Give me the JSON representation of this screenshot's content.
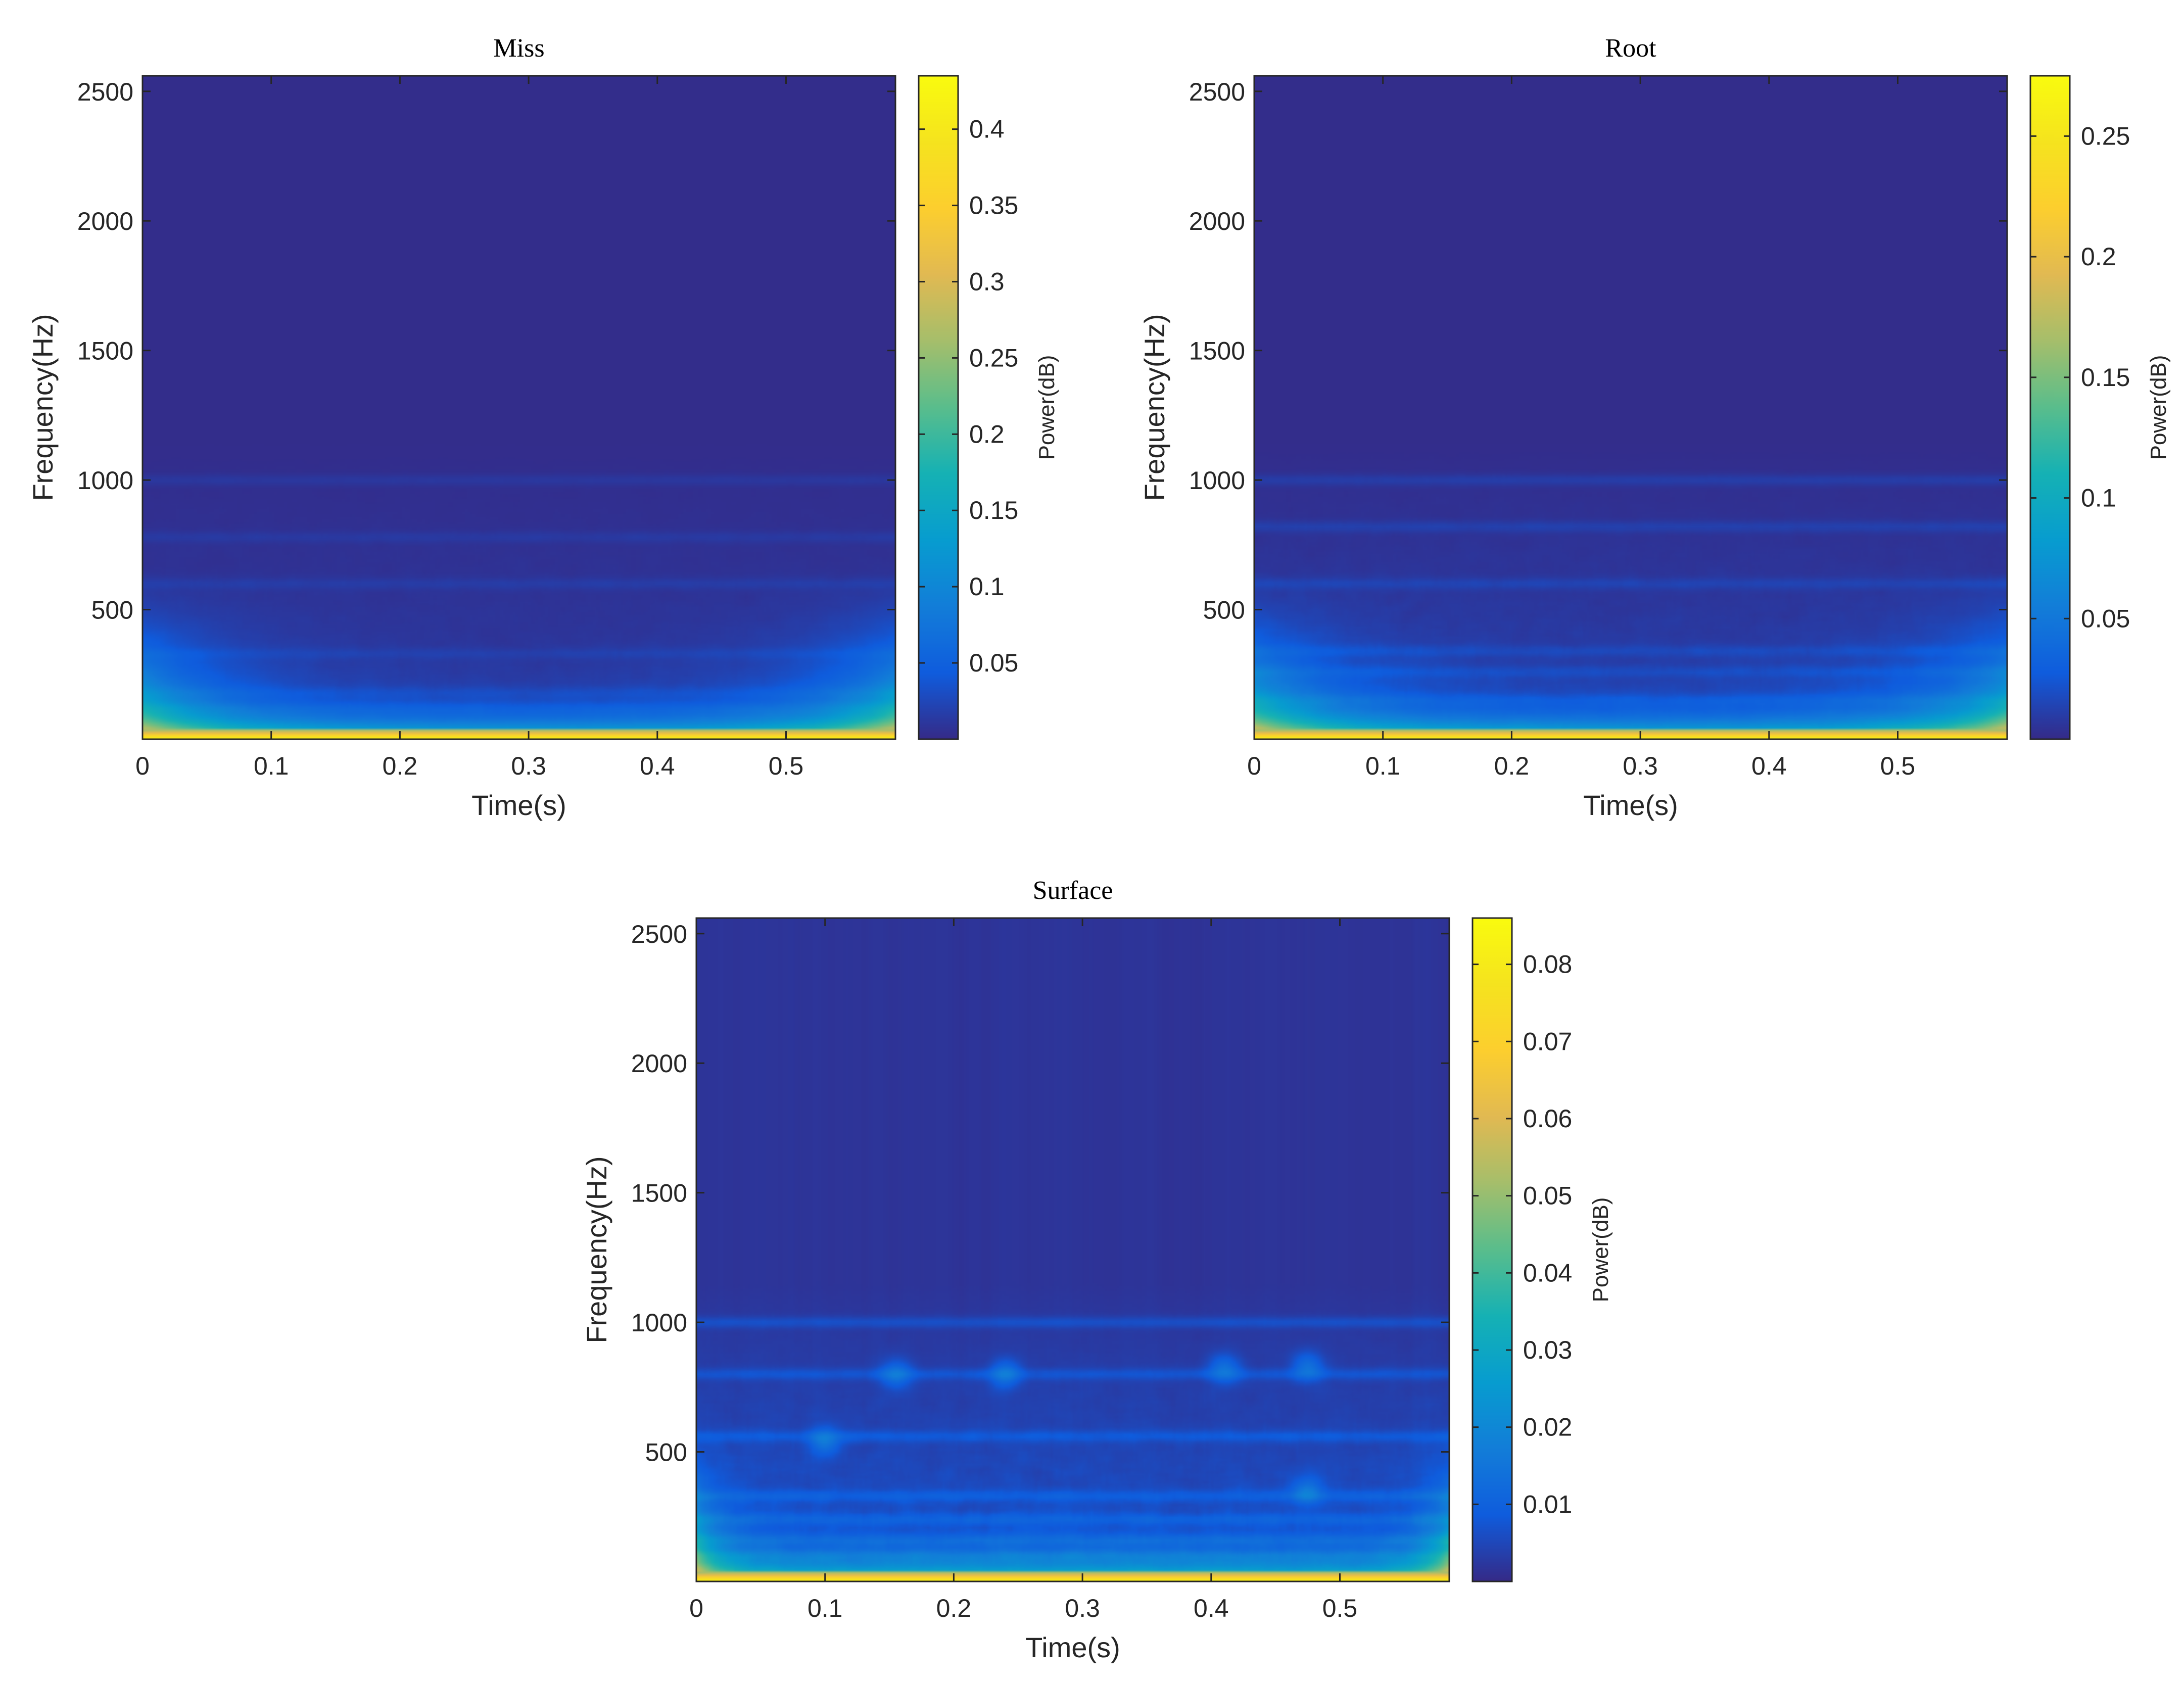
{
  "colors": {
    "background_low": "#3c2aa8",
    "colormap": "parula",
    "axis_line": "#262626",
    "text": "#262626"
  },
  "chart_data": [
    {
      "type": "heatmap",
      "title": "Miss",
      "xlabel": "Time(s)",
      "ylabel": "Frequency(Hz)",
      "colorbar_label": "Power(dB)",
      "xlim": [
        0,
        0.585
      ],
      "ylim": [
        0,
        2560
      ],
      "xticks": [
        0,
        0.1,
        0.2,
        0.3,
        0.4,
        0.5
      ],
      "yticks": [
        500,
        1000,
        1500,
        2000,
        2500
      ],
      "clim": [
        0,
        0.435
      ],
      "cticks": [
        0.05,
        0.1,
        0.15,
        0.2,
        0.25,
        0.3,
        0.35,
        0.4
      ],
      "low_frequency_band_hz": [
        0,
        40
      ],
      "peak_power": 0.43,
      "edge_energy_width_s": 0.06,
      "texture_level": 0.3,
      "bands_hz": [
        120,
        180,
        330,
        600,
        780,
        1000
      ]
    },
    {
      "type": "heatmap",
      "title": "Root",
      "xlabel": "Time(s)",
      "ylabel": "Frequency(Hz)",
      "colorbar_label": "Power(dB)",
      "xlim": [
        0,
        0.585
      ],
      "ylim": [
        0,
        2560
      ],
      "xticks": [
        0,
        0.1,
        0.2,
        0.3,
        0.4,
        0.5
      ],
      "yticks": [
        500,
        1000,
        1500,
        2000,
        2500
      ],
      "clim": [
        0,
        0.275
      ],
      "cticks": [
        0.05,
        0.1,
        0.15,
        0.2,
        0.25
      ],
      "low_frequency_band_hz": [
        0,
        40
      ],
      "peak_power": 0.27,
      "edge_energy_width_s": 0.06,
      "texture_level": 0.45,
      "bands_hz": [
        150,
        260,
        340,
        600,
        820,
        1000
      ]
    },
    {
      "type": "heatmap",
      "title": "Surface",
      "xlabel": "Time(s)",
      "ylabel": "Frequency(Hz)",
      "colorbar_label": "Power(dB)",
      "xlim": [
        0,
        0.585
      ],
      "ylim": [
        0,
        2560
      ],
      "xticks": [
        0,
        0.1,
        0.2,
        0.3,
        0.4,
        0.5
      ],
      "yticks": [
        500,
        1000,
        1500,
        2000,
        2500
      ],
      "clim": [
        0,
        0.086
      ],
      "cticks": [
        0.01,
        0.02,
        0.03,
        0.04,
        0.05,
        0.06,
        0.07,
        0.08
      ],
      "low_frequency_band_hz": [
        0,
        40
      ],
      "peak_power": 0.085,
      "edge_energy_width_s": 0.02,
      "texture_level": 0.75,
      "bands_hz": [
        100,
        160,
        240,
        330,
        560,
        800,
        1000
      ],
      "hotspots": [
        {
          "t": 0.1,
          "f": 540
        },
        {
          "t": 0.155,
          "f": 800
        },
        {
          "t": 0.24,
          "f": 800
        },
        {
          "t": 0.41,
          "f": 820
        },
        {
          "t": 0.475,
          "f": 350
        },
        {
          "t": 0.475,
          "f": 830
        }
      ]
    }
  ]
}
